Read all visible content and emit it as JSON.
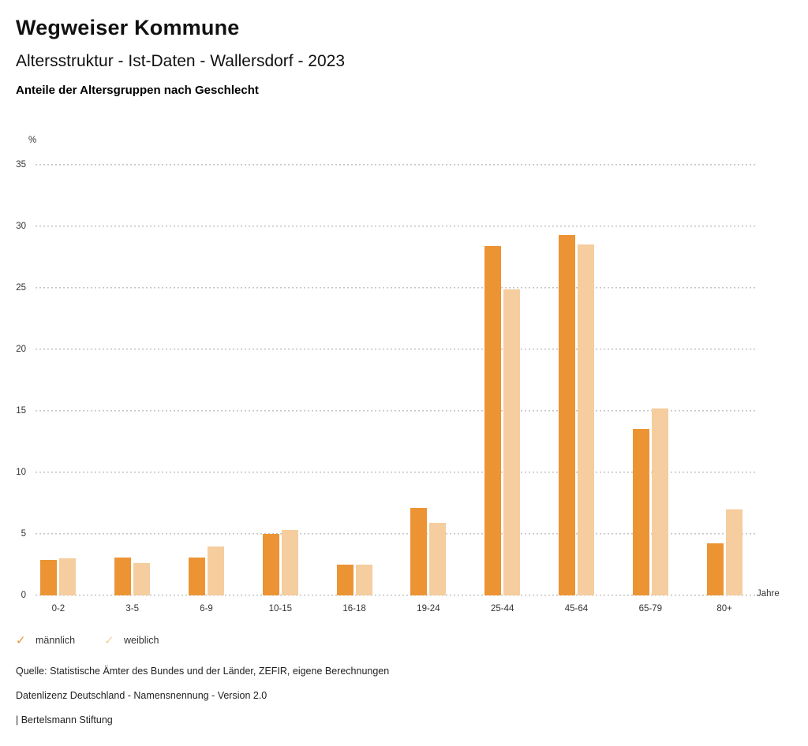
{
  "header": {
    "title": "Wegweiser Kommune",
    "subtitle": "Altersstruktur - Ist-Daten - Wallersdorf - 2023",
    "section_heading": "Anteile der Altersgruppen nach Geschlecht"
  },
  "chart_data": {
    "type": "bar",
    "title": "Anteile der Altersgruppen nach Geschlecht",
    "categories": [
      "0-2",
      "3-5",
      "6-9",
      "10-15",
      "16-18",
      "19-24",
      "25-44",
      "45-64",
      "65-79",
      "80+"
    ],
    "series": [
      {
        "name": "männlich",
        "color": "#EC9434",
        "values": [
          2.9,
          3.1,
          3.1,
          5.0,
          2.5,
          7.1,
          28.4,
          29.3,
          13.5,
          4.2
        ]
      },
      {
        "name": "weiblich",
        "color": "#F5CD9E",
        "values": [
          3.0,
          2.6,
          4.0,
          5.3,
          2.5,
          5.9,
          24.9,
          28.5,
          15.2,
          7.0
        ]
      }
    ],
    "xlabel": "Jahre",
    "ylabel": "%",
    "ylim": [
      0,
      35
    ],
    "ytick_step": 5,
    "grid": "dotted-horizontal",
    "legend_position": "bottom-left",
    "check_icon": "✓",
    "gridline_color": "#c6c6c6"
  },
  "footer": {
    "lines": [
      "Quelle: Statistische Ämter des Bundes und der Länder, ZEFIR, eigene Berechnungen",
      "Datenlizenz Deutschland - Namensnennung - Version 2.0",
      "| Bertelsmann Stiftung"
    ]
  }
}
